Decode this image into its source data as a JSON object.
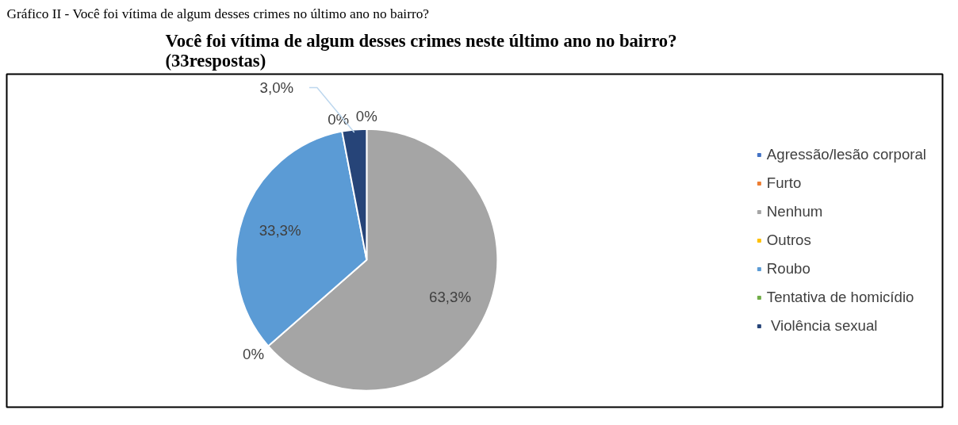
{
  "chart_data": {
    "type": "pie",
    "title": "Você foi vítima de algum desses crimes neste último ano no bairro?\n(33respostas)",
    "annotations": [
      "Gráfico II - Você foi vítima de algum desses crimes no último ano no bairro?"
    ],
    "categories": [
      "Agressão/lesão corporal",
      "Furto",
      "Nenhum",
      "Outros",
      "Roubo",
      "Tentativa de homicídio",
      " Violência sexual"
    ],
    "values": [
      0,
      0,
      63.3,
      0,
      33.3,
      0,
      3.0
    ],
    "colors": [
      "#4472c4",
      "#ed7d31",
      "#a5a5a5",
      "#ffc000",
      "#5b9bd5",
      "#70ad47",
      "#264478"
    ],
    "value_labels": [
      "0%",
      null,
      "63,3%",
      "0%",
      "33,3%",
      "0%",
      "3,0%"
    ],
    "legend": "right"
  }
}
